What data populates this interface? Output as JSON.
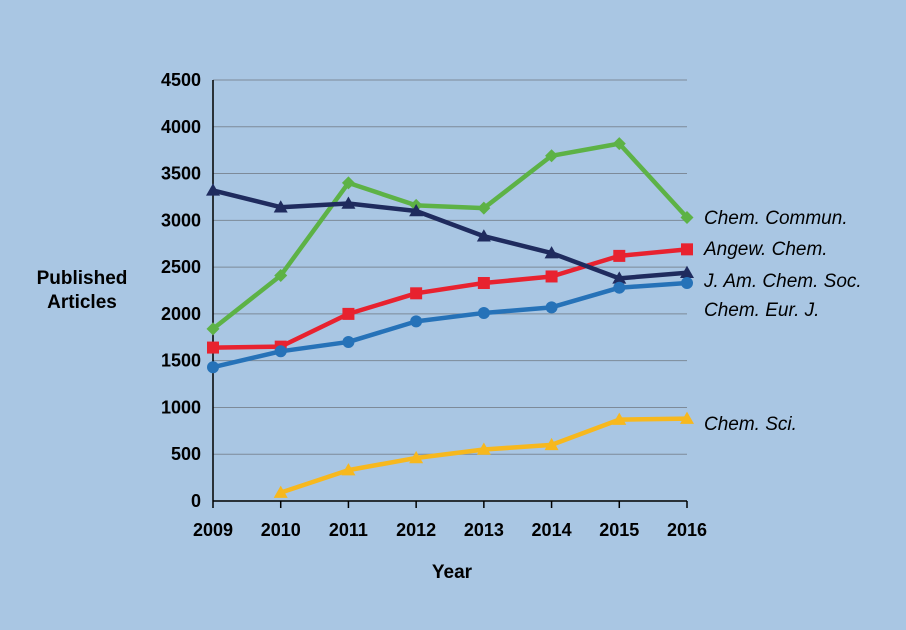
{
  "chart_data": {
    "type": "line",
    "title": "",
    "xlabel": "Year",
    "ylabel": [
      "Published",
      "Articles"
    ],
    "x": [
      "2009",
      "2010",
      "2011",
      "2012",
      "2013",
      "2014",
      "2015",
      "2016"
    ],
    "ylim": [
      0,
      4500
    ],
    "yticks": [
      0,
      500,
      1000,
      1500,
      2000,
      2500,
      3000,
      3500,
      4000,
      4500
    ],
    "grid": true,
    "legend": "labels at end of lines (right)",
    "series": [
      {
        "name": "Chem. Commun.",
        "color": "#5db246",
        "marker": "diamond",
        "values": [
          1840,
          2410,
          3400,
          3160,
          3130,
          3690,
          3820,
          3030
        ]
      },
      {
        "name": "Angew. Chem.",
        "color": "#e8222f",
        "marker": "square",
        "values": [
          1640,
          1650,
          2000,
          2220,
          2330,
          2400,
          2620,
          2690
        ]
      },
      {
        "name": "J. Am. Chem. Soc.",
        "color": "#1f2b5e",
        "marker": "triangle",
        "values": [
          3320,
          3140,
          3180,
          3100,
          2830,
          2650,
          2380,
          2440
        ]
      },
      {
        "name": "Chem. Eur. J.",
        "color": "#2672b8",
        "marker": "circle",
        "values": [
          1430,
          1600,
          1700,
          1920,
          2010,
          2070,
          2280,
          2330
        ]
      },
      {
        "name": "Chem. Sci.",
        "color": "#f7b81e",
        "marker": "triangle",
        "values": [
          null,
          90,
          330,
          460,
          550,
          600,
          870,
          880
        ]
      }
    ]
  }
}
